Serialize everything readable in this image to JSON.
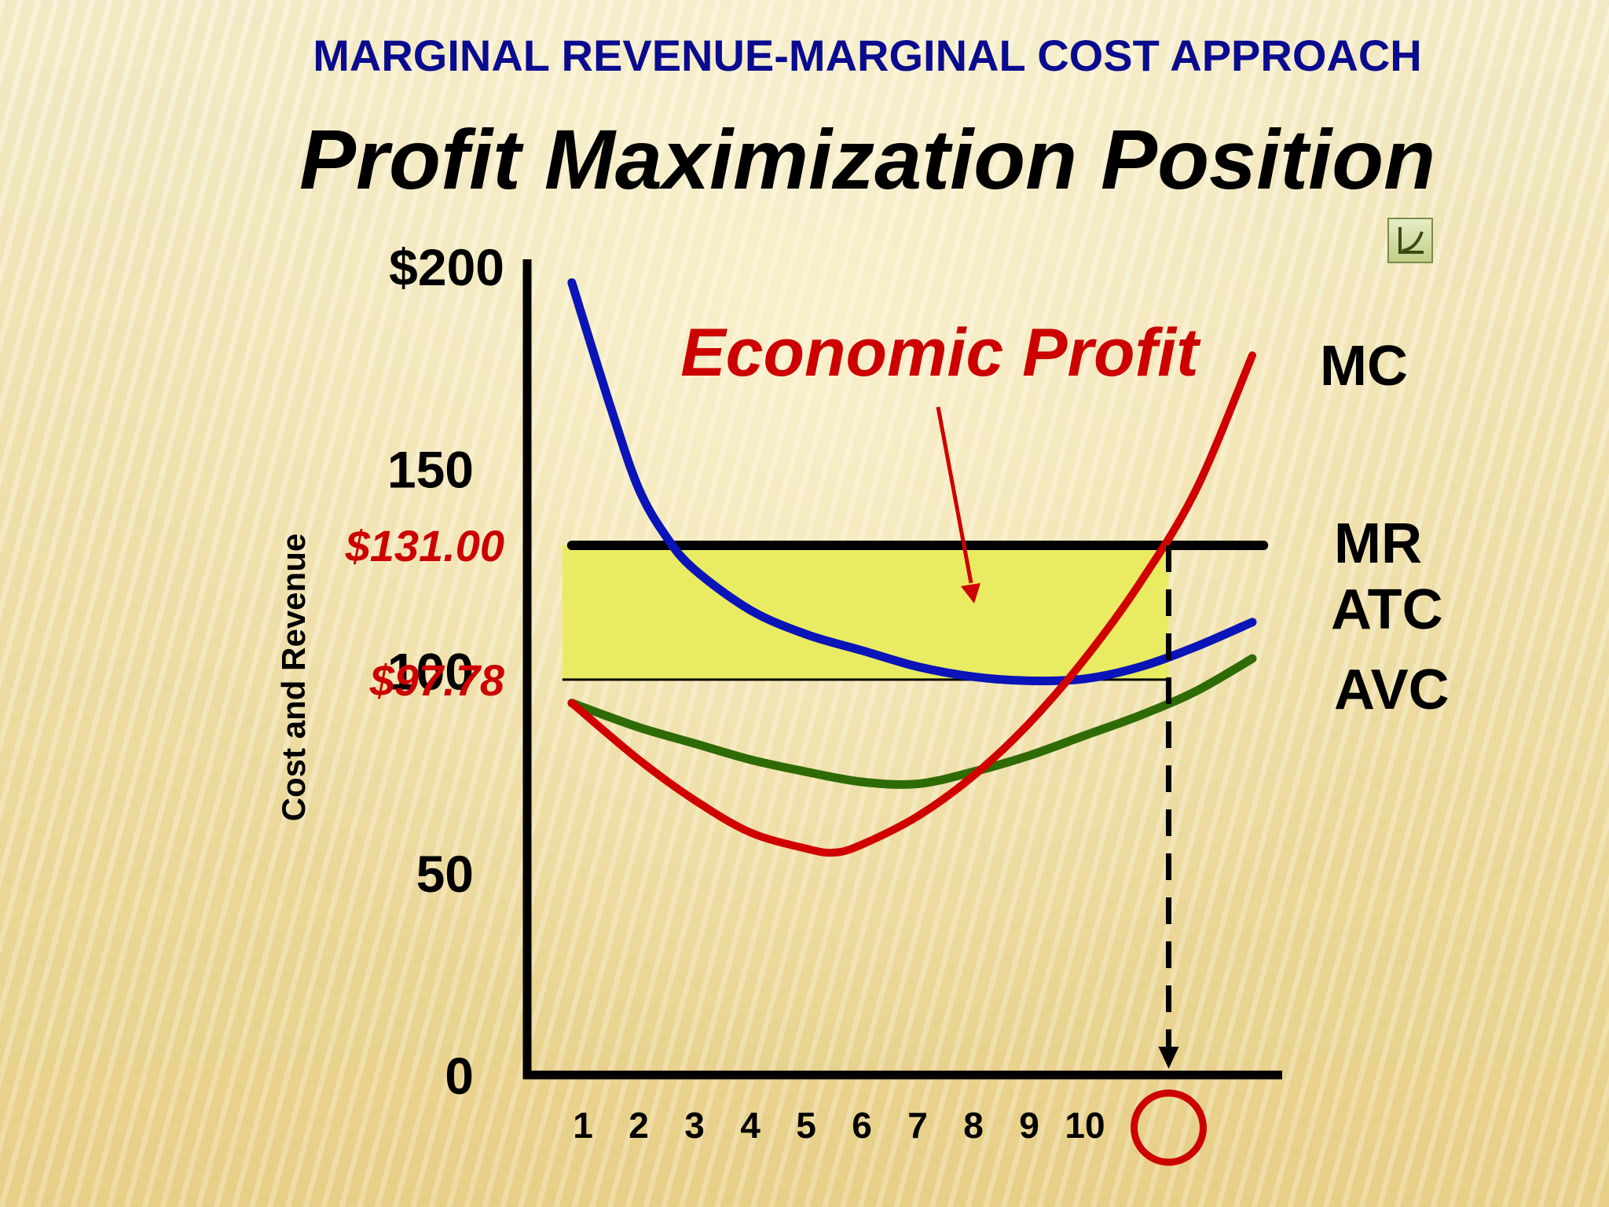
{
  "header": {
    "title": "MARGINAL REVENUE-MARGINAL COST APPROACH",
    "subtitle": "Profit Maximization Position"
  },
  "nav_button": {
    "icon": "curve-graph-icon"
  },
  "colors": {
    "title": "#0b0b8f",
    "accent_red": "#cc0000",
    "mc": "#d10000",
    "atc": "#0a14b8",
    "avc": "#2e6b06",
    "profit_fill": "#e9ec62",
    "axis": "#000000"
  },
  "chart_data": {
    "type": "line",
    "title": "Profit Maximization Position",
    "ylabel": "Cost and Revenue",
    "xlabel": "",
    "ylim": [
      0,
      200
    ],
    "y_ticks": [
      "0",
      "50",
      "100",
      "150",
      "$200"
    ],
    "y_price_labels": [
      {
        "value": 131,
        "label": "$131.00"
      },
      {
        "value": 97.78,
        "label": "$97.78"
      }
    ],
    "x_ticks": [
      "1",
      "2",
      "3",
      "4",
      "5",
      "6",
      "7",
      "8",
      "9",
      "10"
    ],
    "x_optimum": 11.5,
    "series": [
      {
        "name": "MC",
        "x": [
          0.8,
          2,
          3,
          4,
          5,
          5.5,
          6,
          7,
          8,
          9,
          10,
          11,
          12,
          13
        ],
        "y": [
          92,
          78,
          68,
          60,
          56,
          55,
          57,
          64,
          74,
          87,
          103,
          122,
          145,
          178
        ]
      },
      {
        "name": "ATC",
        "x": [
          0.8,
          1.5,
          2,
          2.5,
          3,
          4,
          5,
          6,
          7,
          8,
          9,
          10,
          11,
          12,
          13
        ],
        "y": [
          196,
          165,
          145,
          133,
          125,
          115,
          109,
          105,
          101,
          98.5,
          97.5,
          98,
          101,
          106,
          112
        ]
      },
      {
        "name": "AVC",
        "x": [
          0.8,
          2,
          3,
          4,
          5,
          6,
          7,
          8,
          9,
          10,
          11,
          12,
          13
        ],
        "y": [
          92,
          86,
          82,
          78,
          75,
          72.5,
          72,
          75,
          79,
          84,
          89,
          95,
          103
        ]
      },
      {
        "name": "MR",
        "x": [
          0.8,
          13.2
        ],
        "y": [
          131,
          131
        ]
      }
    ],
    "annotations": [
      {
        "text": "Economic Profit",
        "region": {
          "x": [
            0.8,
            11.5
          ],
          "y": [
            97.78,
            131
          ]
        }
      }
    ]
  }
}
